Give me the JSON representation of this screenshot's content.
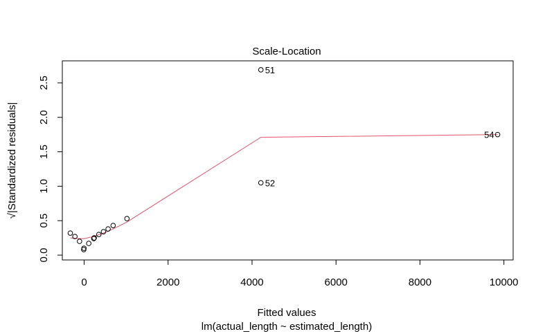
{
  "chart_data": {
    "type": "scatter",
    "title": "Scale-Location",
    "xlabel": "Fitted values",
    "sublabel": "lm(actual_length ~ estimated_length)",
    "ylabel": "√|Standardized residuals|",
    "xlim": [
      -520,
      10220
    ],
    "ylim": [
      -0.07,
      2.82
    ],
    "x_ticks": [
      0,
      2000,
      4000,
      6000,
      8000,
      10000
    ],
    "x_tick_labels": [
      "0",
      "2000",
      "4000",
      "6000",
      "8000",
      "10000"
    ],
    "y_ticks": [
      0.0,
      0.5,
      1.0,
      1.5,
      2.0,
      2.5
    ],
    "y_tick_labels": [
      "0.0",
      "0.5",
      "1.0",
      "1.5",
      "2.0",
      "2.5"
    ],
    "grid": false,
    "points": [
      {
        "x": -330,
        "y": 0.32
      },
      {
        "x": -220,
        "y": 0.27
      },
      {
        "x": -110,
        "y": 0.2
      },
      {
        "x": -10,
        "y": 0.08
      },
      {
        "x": -5,
        "y": 0.1
      },
      {
        "x": 110,
        "y": 0.17
      },
      {
        "x": 230,
        "y": 0.24
      },
      {
        "x": 240,
        "y": 0.25
      },
      {
        "x": 350,
        "y": 0.3
      },
      {
        "x": 460,
        "y": 0.34
      },
      {
        "x": 570,
        "y": 0.38
      },
      {
        "x": 690,
        "y": 0.43
      },
      {
        "x": 1020,
        "y": 0.53
      },
      {
        "x": 4210,
        "y": 2.69,
        "label": "51"
      },
      {
        "x": 4210,
        "y": 1.05,
        "label": "52"
      },
      {
        "x": 9850,
        "y": 1.75,
        "label": "54"
      }
    ],
    "smoother": {
      "name": "smoother",
      "color": "#df536b",
      "x": [
        -330,
        -110,
        0,
        230,
        460,
        690,
        1020,
        4210,
        9850
      ],
      "y": [
        0.25,
        0.24,
        0.24,
        0.27,
        0.32,
        0.38,
        0.48,
        1.71,
        1.75
      ]
    },
    "colors": {
      "points": "#000000",
      "smoother": "#df536b",
      "axis": "#000000"
    }
  }
}
